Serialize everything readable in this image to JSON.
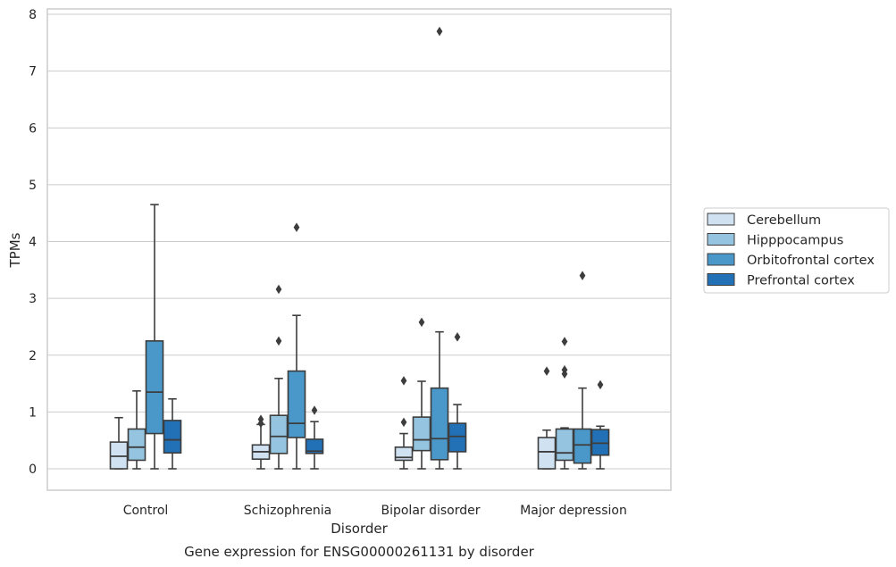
{
  "chart_data": {
    "type": "box",
    "title": "Gene expression for ENSG00000261131 by disorder",
    "xlabel": "Disorder",
    "ylabel": "TPMs",
    "ylim": [
      -0.36,
      8.1
    ],
    "yticks": [
      0,
      1,
      2,
      3,
      4,
      5,
      6,
      7,
      8
    ],
    "grid": true,
    "legend_position": "right",
    "categories": [
      "Control",
      "Schizophrenia",
      "Bipolar disorder",
      "Major depression"
    ],
    "series": [
      {
        "name": "Cerebellum",
        "color": "#d0e1f2",
        "boxes": [
          {
            "whislo": 0.0,
            "q1": 0.0,
            "med": 0.22,
            "q3": 0.47,
            "whishi": 0.9,
            "fliers": []
          },
          {
            "whislo": 0.0,
            "q1": 0.17,
            "med": 0.3,
            "q3": 0.42,
            "whishi": 0.78,
            "fliers": [
              0.8,
              0.87
            ]
          },
          {
            "whislo": 0.0,
            "q1": 0.15,
            "med": 0.2,
            "q3": 0.38,
            "whishi": 0.62,
            "fliers": [
              0.82,
              1.55
            ]
          },
          {
            "whislo": 0.0,
            "q1": 0.0,
            "med": 0.3,
            "q3": 0.55,
            "whishi": 0.68,
            "fliers": [
              1.72
            ]
          }
        ]
      },
      {
        "name": "Hipppocampus",
        "color": "#94c4df",
        "boxes": [
          {
            "whislo": 0.0,
            "q1": 0.15,
            "med": 0.38,
            "q3": 0.7,
            "whishi": 1.37,
            "fliers": []
          },
          {
            "whislo": 0.0,
            "q1": 0.27,
            "med": 0.57,
            "q3": 0.94,
            "whishi": 1.59,
            "fliers": [
              2.25,
              3.16
            ]
          },
          {
            "whislo": 0.0,
            "q1": 0.32,
            "med": 0.51,
            "q3": 0.91,
            "whishi": 1.54,
            "fliers": [
              2.58
            ]
          },
          {
            "whislo": 0.0,
            "q1": 0.15,
            "med": 0.28,
            "q3": 0.7,
            "whishi": 0.72,
            "fliers": [
              1.67,
              1.74,
              2.24
            ]
          }
        ]
      },
      {
        "name": "Orbitofrontal cortex",
        "color": "#4a98c9",
        "boxes": [
          {
            "whislo": 0.0,
            "q1": 0.62,
            "med": 1.35,
            "q3": 2.25,
            "whishi": 4.65,
            "fliers": []
          },
          {
            "whislo": 0.0,
            "q1": 0.55,
            "med": 0.8,
            "q3": 1.72,
            "whishi": 2.7,
            "fliers": [
              4.25
            ]
          },
          {
            "whislo": 0.0,
            "q1": 0.16,
            "med": 0.53,
            "q3": 1.42,
            "whishi": 2.41,
            "fliers": [
              7.7
            ]
          },
          {
            "whislo": 0.0,
            "q1": 0.1,
            "med": 0.42,
            "q3": 0.7,
            "whishi": 1.42,
            "fliers": [
              3.4
            ]
          }
        ]
      },
      {
        "name": "Prefrontal cortex",
        "color": "#2270b5",
        "boxes": [
          {
            "whislo": 0.0,
            "q1": 0.28,
            "med": 0.51,
            "q3": 0.85,
            "whishi": 1.23,
            "fliers": []
          },
          {
            "whislo": 0.0,
            "q1": 0.27,
            "med": 0.31,
            "q3": 0.52,
            "whishi": 0.83,
            "fliers": [
              1.03
            ]
          },
          {
            "whislo": 0.0,
            "q1": 0.3,
            "med": 0.57,
            "q3": 0.8,
            "whishi": 1.13,
            "fliers": [
              2.32
            ]
          },
          {
            "whislo": 0.0,
            "q1": 0.24,
            "med": 0.45,
            "q3": 0.69,
            "whishi": 0.75,
            "fliers": [
              1.48
            ]
          }
        ]
      }
    ]
  }
}
